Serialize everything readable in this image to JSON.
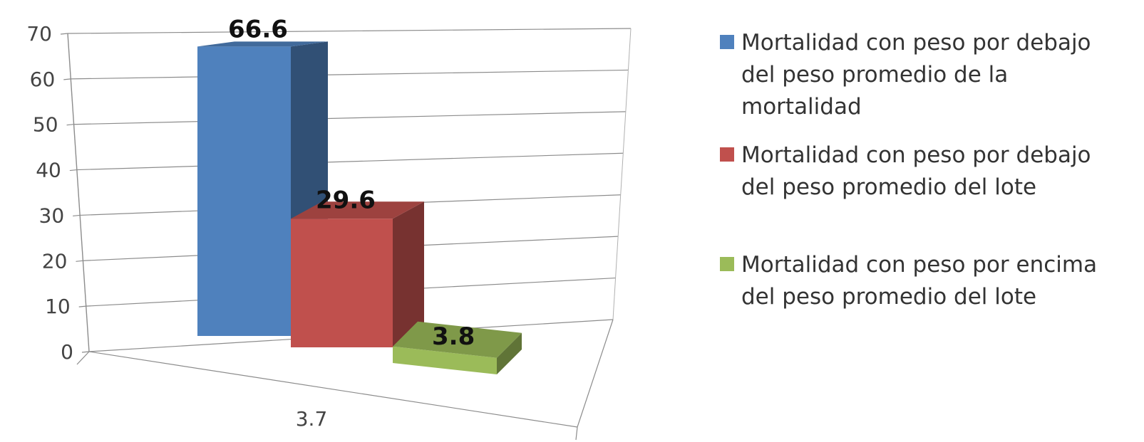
{
  "chart_data": {
    "type": "bar",
    "categories": [
      "3.7"
    ],
    "series": [
      {
        "name": "Mortalidad con peso por debajo del peso promedio de  la mortalidad",
        "values": [
          66.6
        ],
        "color": "#4F81BD",
        "value_label": "66.6"
      },
      {
        "name": "Mortalidad con peso por debajo del peso promedio del lote",
        "values": [
          29.6
        ],
        "color": "#C0504D",
        "value_label": "29.6"
      },
      {
        "name": "Mortalidad con peso por encima del peso promedio del lote",
        "values": [
          3.8
        ],
        "color": "#9BBB59",
        "value_label": "3.8"
      }
    ],
    "y_ticks": [
      "0",
      "10",
      "20",
      "30",
      "40",
      "50",
      "60",
      "70"
    ],
    "ylim": [
      0,
      70
    ],
    "grid": true,
    "style": "3d",
    "legend_position": "right"
  },
  "legend": {
    "items": [
      {
        "label": "Mortalidad con peso por debajo\ndel peso promedio de  la\nmortalidad",
        "color": "#4F81BD"
      },
      {
        "label": "Mortalidad con peso por debajo\ndel peso promedio del lote",
        "color": "#C0504D"
      },
      {
        "label": "Mortalidad con peso por encima\ndel peso promedio del lote",
        "color": "#9BBB59"
      }
    ]
  }
}
